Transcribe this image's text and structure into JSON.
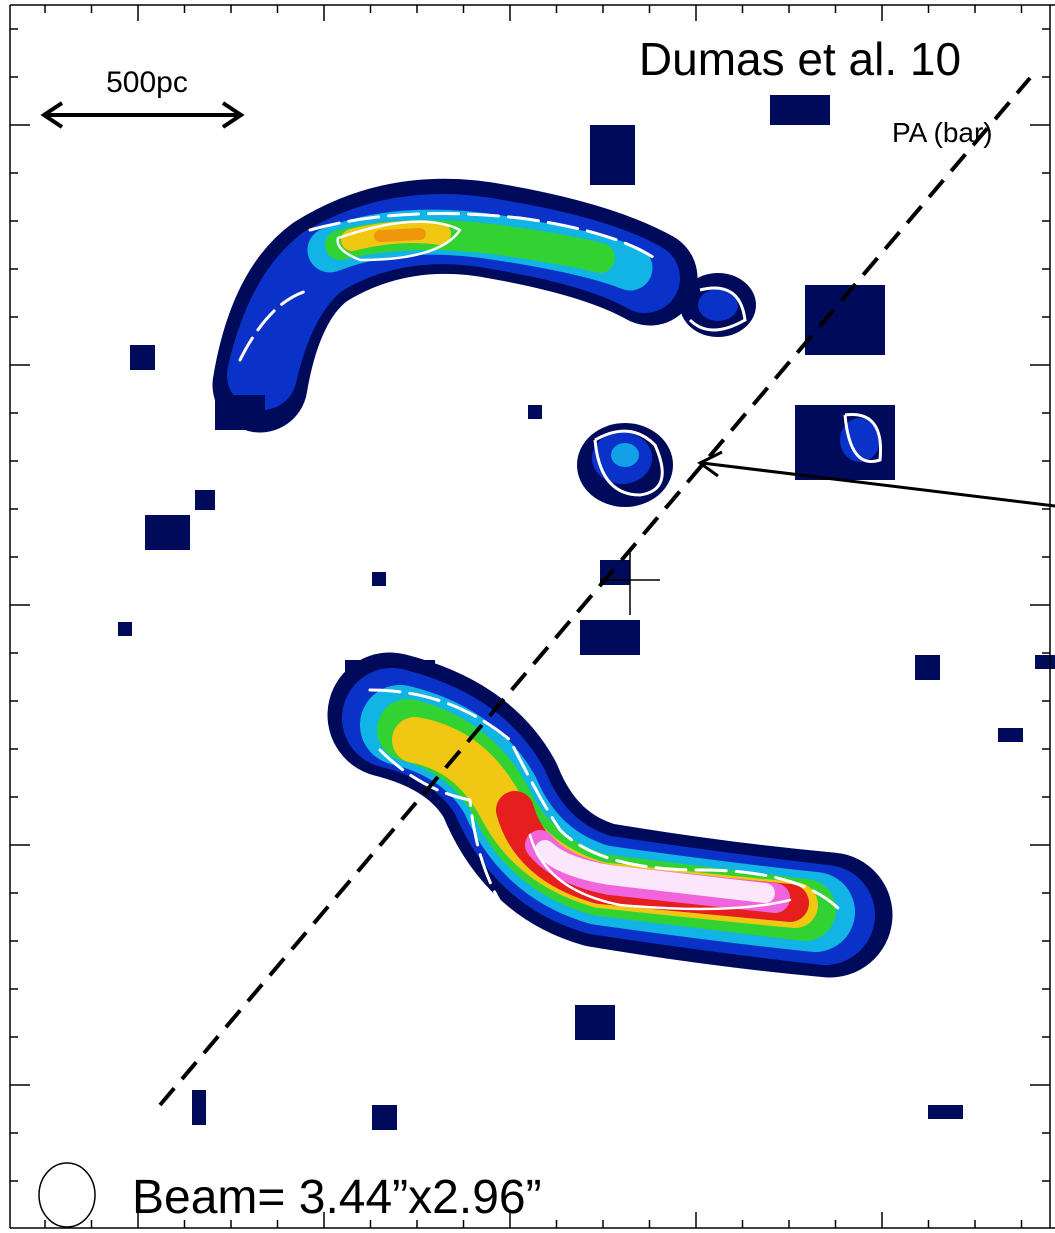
{
  "title": "Dumas et al. 10",
  "scale_bar": "500pc",
  "axis_label": "PA (bar)",
  "beam": "Beam= 3.44”x2.96”"
}
